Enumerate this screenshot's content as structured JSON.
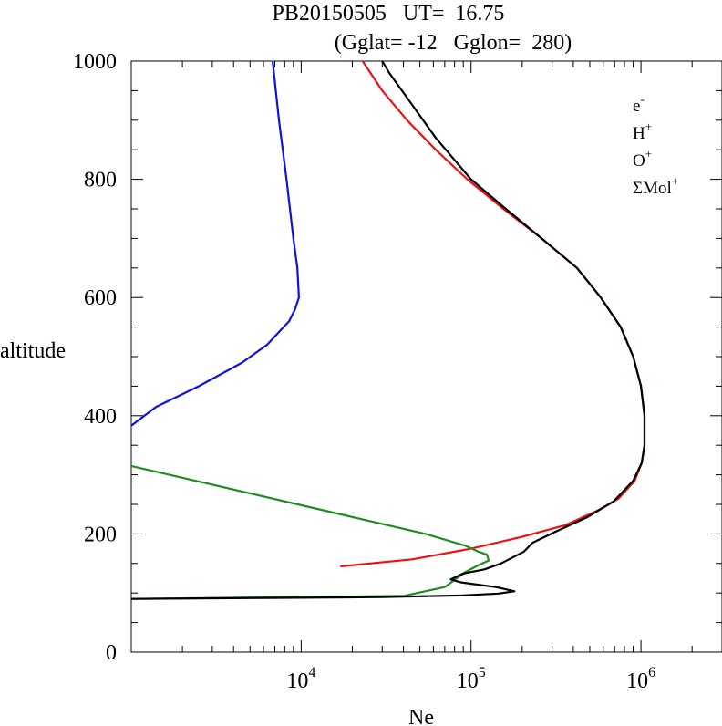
{
  "title": {
    "line1": "PB20150505   UT=  16.75",
    "line2": "(Gglat= -12   Gglon=  280)"
  },
  "colors": {
    "e": "#000000",
    "H": "#1010e0",
    "O": "#ee1111",
    "Mol": "#228b22"
  },
  "chart_data": {
    "type": "line",
    "title": "PB20150505   UT=  16.75  (Gglat= -12   Gglon=  280)",
    "xlabel": "Ne",
    "ylabel": "altitude",
    "xscale": "log",
    "xlim": [
      1000,
      3000000
    ],
    "ylim": [
      0,
      1000
    ],
    "x_ticks": [
      {
        "value": 10000,
        "base": "10",
        "exp": "4"
      },
      {
        "value": 100000,
        "base": "10",
        "exp": "5"
      },
      {
        "value": 1000000,
        "base": "10",
        "exp": "6"
      }
    ],
    "y_ticks": [
      "0",
      "200",
      "400",
      "600",
      "800",
      "1000"
    ],
    "grid": false,
    "legend_position": "top-right",
    "legend": [
      {
        "key": "e",
        "base": "e",
        "sup": "-"
      },
      {
        "key": "H",
        "base": "H",
        "sup": "+"
      },
      {
        "key": "O",
        "base": "O",
        "sup": "+"
      },
      {
        "key": "Mol",
        "base": "ΣMol",
        "sup": "+"
      }
    ],
    "series": [
      {
        "key": "H",
        "name": "H+",
        "points": [
          [
            6800,
            1000
          ],
          [
            7400,
            900
          ],
          [
            8200,
            800
          ],
          [
            9000,
            700
          ],
          [
            9500,
            650
          ],
          [
            9700,
            600
          ],
          [
            9200,
            580
          ],
          [
            8500,
            560
          ],
          [
            7600,
            545
          ],
          [
            6300,
            520
          ],
          [
            4500,
            490
          ],
          [
            2500,
            450
          ],
          [
            1400,
            415
          ],
          [
            1000,
            383
          ]
        ]
      },
      {
        "key": "O",
        "name": "O+",
        "points": [
          [
            23000,
            1000
          ],
          [
            30000,
            950
          ],
          [
            42000,
            900
          ],
          [
            62000,
            850
          ],
          [
            95000,
            800
          ],
          [
            155000,
            750
          ],
          [
            260000,
            700
          ],
          [
            420000,
            650
          ],
          [
            580000,
            600
          ],
          [
            760000,
            550
          ],
          [
            900000,
            500
          ],
          [
            1000000,
            450
          ],
          [
            1050000,
            400
          ],
          [
            1050000,
            350
          ],
          [
            1010000,
            320
          ],
          [
            920000,
            290
          ],
          [
            740000,
            260
          ],
          [
            560000,
            240
          ],
          [
            360000,
            215
          ],
          [
            200000,
            195
          ],
          [
            100000,
            175
          ],
          [
            45000,
            157
          ],
          [
            17000,
            145
          ]
        ]
      },
      {
        "key": "Mol",
        "name": "ΣMol+",
        "points": [
          [
            1000,
            315
          ],
          [
            54000,
            200
          ],
          [
            93000,
            180
          ],
          [
            110000,
            170
          ],
          [
            124000,
            165
          ],
          [
            127000,
            155
          ],
          [
            112000,
            148
          ],
          [
            92000,
            135
          ],
          [
            70000,
            110
          ],
          [
            40000,
            95
          ],
          [
            1000,
            90
          ]
        ]
      },
      {
        "key": "e",
        "name": "e-",
        "points": [
          [
            30000,
            1000
          ],
          [
            33000,
            980
          ],
          [
            44000,
            930
          ],
          [
            62000,
            870
          ],
          [
            100000,
            800
          ],
          [
            160000,
            750
          ],
          [
            260000,
            700
          ],
          [
            420000,
            650
          ],
          [
            580000,
            600
          ],
          [
            760000,
            550
          ],
          [
            900000,
            500
          ],
          [
            1000000,
            450
          ],
          [
            1050000,
            400
          ],
          [
            1050000,
            350
          ],
          [
            1010000,
            320
          ],
          [
            900000,
            290
          ],
          [
            690000,
            255
          ],
          [
            480000,
            228
          ],
          [
            320000,
            205
          ],
          [
            230000,
            185
          ],
          [
            205000,
            170
          ],
          [
            150000,
            150
          ],
          [
            120000,
            140
          ],
          [
            90000,
            133
          ],
          [
            76000,
            123
          ],
          [
            87000,
            118
          ],
          [
            140000,
            110
          ],
          [
            180000,
            103
          ],
          [
            145000,
            99
          ],
          [
            90000,
            96
          ],
          [
            30000,
            93
          ],
          [
            1000,
            90
          ]
        ]
      }
    ]
  }
}
